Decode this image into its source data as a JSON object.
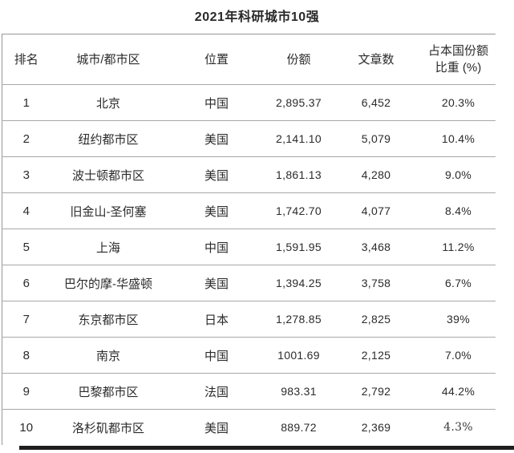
{
  "page": {
    "title": "2021年科研城市10强"
  },
  "chart_data": {
    "type": "table",
    "title": "2021年科研城市10强",
    "columns": [
      "排名",
      "城市/都市区",
      "位置",
      "份额",
      "文章数",
      "占本国份额比重 (%)"
    ],
    "rows": [
      [
        "1",
        "北京",
        "中国",
        "2,895.37",
        "6,452",
        "20.3%"
      ],
      [
        "2",
        "纽约都市区",
        "美国",
        "2,141.10",
        "5,079",
        "10.4%"
      ],
      [
        "3",
        "波士顿都市区",
        "美国",
        "1,861.13",
        "4,280",
        "9.0%"
      ],
      [
        "4",
        "旧金山-圣何塞",
        "美国",
        "1,742.70",
        "4,077",
        "8.4%"
      ],
      [
        "5",
        "上海",
        "中国",
        "1,591.95",
        "3,468",
        "11.2%"
      ],
      [
        "6",
        "巴尔的摩-华盛顿",
        "美国",
        "1,394.25",
        "3,758",
        "6.7%"
      ],
      [
        "7",
        "东京都市区",
        "日本",
        "1,278.85",
        "2,825",
        "39%"
      ],
      [
        "8",
        "南京",
        "中国",
        "1001.69",
        "2,125",
        "7.0%"
      ],
      [
        "9",
        "巴黎都市区",
        "法国",
        "983.31",
        "2,792",
        "44.2%"
      ],
      [
        "10",
        "洛杉矶都市区",
        "美国",
        "889.72",
        "2,369",
        "4.3%"
      ]
    ]
  },
  "colors": {
    "text": "#2b2b2b",
    "grid_line": "#a8a8a8",
    "outer_border": "#979797",
    "bottom_bar": "#1f1f1f",
    "background": "#ffffff"
  }
}
